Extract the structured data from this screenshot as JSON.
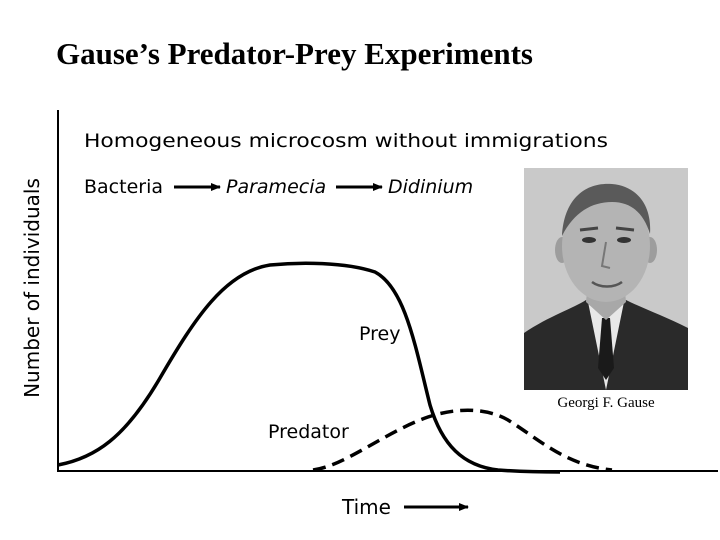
{
  "slide": {
    "title": "Gause’s Predator-Prey Experiments"
  },
  "diagram": {
    "heading": "Homogeneous microcosm without immigrations",
    "food_chain": {
      "first": "Bacteria",
      "second": "Paramecia",
      "third": "Didinium"
    },
    "curves": {
      "prey_label": "Prey",
      "predator_label": "Predator"
    },
    "axes": {
      "y_label": "Number of individuals",
      "x_label": "Time"
    }
  },
  "portrait": {
    "caption": "Georgi F. Gause"
  }
}
